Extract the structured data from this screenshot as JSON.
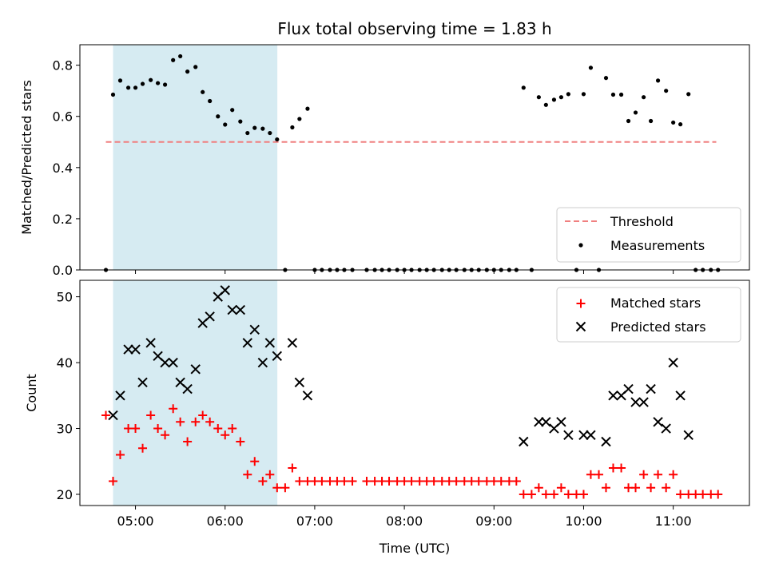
{
  "chart_data": {
    "title": "Flux total observing time = 1.83 h",
    "xlabel": "Time (UTC)",
    "x_tick_labels": [
      "05:00",
      "06:00",
      "07:00",
      "08:00",
      "09:00",
      "10:00",
      "11:00"
    ],
    "x_ticks_hours": [
      5,
      6,
      7,
      8,
      9,
      10,
      11
    ],
    "xlim_hours": [
      4.38,
      11.85
    ],
    "shaded_span_hours": [
      4.75,
      6.583
    ],
    "colors": {
      "shade": "#add8e6",
      "threshold": "#f08080",
      "matched": "#ff0000",
      "predicted": "#000000",
      "measurement": "#000000"
    },
    "panels": [
      {
        "type": "scatter",
        "ylabel": "Matched/Predicted stars",
        "ylim": [
          0,
          0.88
        ],
        "y_ticks": [
          0.0,
          0.2,
          0.4,
          0.6,
          0.8
        ],
        "y_tick_labels": [
          "0.0",
          "0.2",
          "0.4",
          "0.6",
          "0.8"
        ],
        "legend_position": "lower-right",
        "threshold": {
          "name": "Threshold",
          "value": 0.5,
          "x_range_hours": [
            4.67,
            11.48
          ]
        },
        "series": [
          {
            "name": "Measurements",
            "marker": "dot",
            "points": [
              [
                4.67,
                0.0
              ],
              [
                4.75,
                0.685
              ],
              [
                4.83,
                0.74
              ],
              [
                4.92,
                0.712
              ],
              [
                5.0,
                0.712
              ],
              [
                5.08,
                0.727
              ],
              [
                5.17,
                0.742
              ],
              [
                5.25,
                0.73
              ],
              [
                5.33,
                0.724
              ],
              [
                5.42,
                0.82
              ],
              [
                5.5,
                0.835
              ],
              [
                5.58,
                0.775
              ],
              [
                5.67,
                0.793
              ],
              [
                5.75,
                0.695
              ],
              [
                5.83,
                0.66
              ],
              [
                5.92,
                0.6
              ],
              [
                6.0,
                0.568
              ],
              [
                6.08,
                0.625
              ],
              [
                6.17,
                0.58
              ],
              [
                6.25,
                0.535
              ],
              [
                6.33,
                0.555
              ],
              [
                6.42,
                0.552
              ],
              [
                6.5,
                0.535
              ],
              [
                6.58,
                0.51
              ],
              [
                6.67,
                0.0
              ],
              [
                6.75,
                0.557
              ],
              [
                6.83,
                0.59
              ],
              [
                6.92,
                0.63
              ],
              [
                7.0,
                0.0
              ],
              [
                7.08,
                0.0
              ],
              [
                7.17,
                0.0
              ],
              [
                7.25,
                0.0
              ],
              [
                7.33,
                0.0
              ],
              [
                7.42,
                0.0
              ],
              [
                7.58,
                0.0
              ],
              [
                7.67,
                0.0
              ],
              [
                7.75,
                0.0
              ],
              [
                7.83,
                0.0
              ],
              [
                7.92,
                0.0
              ],
              [
                8.0,
                0.0
              ],
              [
                8.08,
                0.0
              ],
              [
                8.17,
                0.0
              ],
              [
                8.25,
                0.0
              ],
              [
                8.33,
                0.0
              ],
              [
                8.42,
                0.0
              ],
              [
                8.5,
                0.0
              ],
              [
                8.58,
                0.0
              ],
              [
                8.67,
                0.0
              ],
              [
                8.75,
                0.0
              ],
              [
                8.83,
                0.0
              ],
              [
                8.92,
                0.0
              ],
              [
                9.0,
                0.0
              ],
              [
                9.08,
                0.0
              ],
              [
                9.17,
                0.0
              ],
              [
                9.25,
                0.0
              ],
              [
                9.33,
                0.712
              ],
              [
                9.42,
                0.0
              ],
              [
                9.5,
                0.675
              ],
              [
                9.58,
                0.645
              ],
              [
                9.67,
                0.665
              ],
              [
                9.75,
                0.675
              ],
              [
                9.83,
                0.687
              ],
              [
                9.92,
                0.0
              ],
              [
                10.0,
                0.687
              ],
              [
                10.08,
                0.79
              ],
              [
                10.17,
                0.0
              ],
              [
                10.25,
                0.75
              ],
              [
                10.33,
                0.685
              ],
              [
                10.42,
                0.685
              ],
              [
                10.5,
                0.582
              ],
              [
                10.58,
                0.615
              ],
              [
                10.67,
                0.675
              ],
              [
                10.75,
                0.582
              ],
              [
                10.83,
                0.74
              ],
              [
                10.92,
                0.7
              ],
              [
                11.0,
                0.576
              ],
              [
                11.08,
                0.569
              ],
              [
                11.17,
                0.687
              ],
              [
                11.25,
                0.0
              ],
              [
                11.33,
                0.0
              ],
              [
                11.42,
                0.0
              ],
              [
                11.5,
                0.0
              ]
            ]
          }
        ],
        "legend": [
          "Threshold",
          "Measurements"
        ]
      },
      {
        "type": "scatter",
        "ylabel": "Count",
        "ylim": [
          18.3,
          52.5
        ],
        "y_ticks": [
          20,
          30,
          40,
          50
        ],
        "y_tick_labels": [
          "20",
          "30",
          "40",
          "50"
        ],
        "legend_position": "upper-right",
        "series": [
          {
            "name": "Matched stars",
            "marker": "plus",
            "points": [
              [
                4.67,
                32
              ],
              [
                4.75,
                22
              ],
              [
                4.83,
                26
              ],
              [
                4.92,
                30
              ],
              [
                5.0,
                30
              ],
              [
                5.08,
                27
              ],
              [
                5.17,
                32
              ],
              [
                5.25,
                30
              ],
              [
                5.33,
                29
              ],
              [
                5.42,
                33
              ],
              [
                5.5,
                31
              ],
              [
                5.58,
                28
              ],
              [
                5.67,
                31
              ],
              [
                5.75,
                32
              ],
              [
                5.83,
                31
              ],
              [
                5.92,
                30
              ],
              [
                6.0,
                29
              ],
              [
                6.08,
                30
              ],
              [
                6.17,
                28
              ],
              [
                6.25,
                23
              ],
              [
                6.33,
                25
              ],
              [
                6.42,
                22
              ],
              [
                6.5,
                23
              ],
              [
                6.58,
                21
              ],
              [
                6.67,
                21
              ],
              [
                6.75,
                24
              ],
              [
                6.83,
                22
              ],
              [
                6.92,
                22
              ],
              [
                7.0,
                22
              ],
              [
                7.08,
                22
              ],
              [
                7.17,
                22
              ],
              [
                7.25,
                22
              ],
              [
                7.33,
                22
              ],
              [
                7.42,
                22
              ],
              [
                7.58,
                22
              ],
              [
                7.67,
                22
              ],
              [
                7.75,
                22
              ],
              [
                7.83,
                22
              ],
              [
                7.92,
                22
              ],
              [
                8.0,
                22
              ],
              [
                8.08,
                22
              ],
              [
                8.17,
                22
              ],
              [
                8.25,
                22
              ],
              [
                8.33,
                22
              ],
              [
                8.42,
                22
              ],
              [
                8.5,
                22
              ],
              [
                8.58,
                22
              ],
              [
                8.67,
                22
              ],
              [
                8.75,
                22
              ],
              [
                8.83,
                22
              ],
              [
                8.92,
                22
              ],
              [
                9.0,
                22
              ],
              [
                9.08,
                22
              ],
              [
                9.17,
                22
              ],
              [
                9.25,
                22
              ],
              [
                9.33,
                20
              ],
              [
                9.42,
                20
              ],
              [
                9.5,
                21
              ],
              [
                9.58,
                20
              ],
              [
                9.67,
                20
              ],
              [
                9.75,
                21
              ],
              [
                9.83,
                20
              ],
              [
                9.92,
                20
              ],
              [
                10.0,
                20
              ],
              [
                10.08,
                23
              ],
              [
                10.17,
                23
              ],
              [
                10.25,
                21
              ],
              [
                10.33,
                24
              ],
              [
                10.42,
                24
              ],
              [
                10.5,
                21
              ],
              [
                10.58,
                21
              ],
              [
                10.67,
                23
              ],
              [
                10.75,
                21
              ],
              [
                10.83,
                23
              ],
              [
                10.92,
                21
              ],
              [
                11.0,
                23
              ],
              [
                11.08,
                20
              ],
              [
                11.17,
                20
              ],
              [
                11.25,
                20
              ],
              [
                11.33,
                20
              ],
              [
                11.42,
                20
              ],
              [
                11.5,
                20
              ]
            ]
          },
          {
            "name": "Predicted stars",
            "marker": "x",
            "points": [
              [
                4.75,
                32
              ],
              [
                4.83,
                35
              ],
              [
                4.92,
                42
              ],
              [
                5.0,
                42
              ],
              [
                5.08,
                37
              ],
              [
                5.17,
                43
              ],
              [
                5.25,
                41
              ],
              [
                5.33,
                40
              ],
              [
                5.42,
                40
              ],
              [
                5.5,
                37
              ],
              [
                5.58,
                36
              ],
              [
                5.67,
                39
              ],
              [
                5.75,
                46
              ],
              [
                5.83,
                47
              ],
              [
                5.92,
                50
              ],
              [
                6.0,
                51
              ],
              [
                6.08,
                48
              ],
              [
                6.17,
                48
              ],
              [
                6.25,
                43
              ],
              [
                6.33,
                45
              ],
              [
                6.42,
                40
              ],
              [
                6.5,
                43
              ],
              [
                6.58,
                41
              ],
              [
                6.75,
                43
              ],
              [
                6.83,
                37
              ],
              [
                6.92,
                35
              ],
              [
                9.33,
                28
              ],
              [
                9.5,
                31
              ],
              [
                9.58,
                31
              ],
              [
                9.67,
                30
              ],
              [
                9.75,
                31
              ],
              [
                9.83,
                29
              ],
              [
                10.0,
                29
              ],
              [
                10.08,
                29
              ],
              [
                10.25,
                28
              ],
              [
                10.33,
                35
              ],
              [
                10.42,
                35
              ],
              [
                10.5,
                36
              ],
              [
                10.58,
                34
              ],
              [
                10.67,
                34
              ],
              [
                10.75,
                36
              ],
              [
                10.83,
                31
              ],
              [
                10.92,
                30
              ],
              [
                11.0,
                40
              ],
              [
                11.08,
                35
              ],
              [
                11.17,
                29
              ]
            ]
          }
        ],
        "legend": [
          "Matched stars",
          "Predicted stars"
        ]
      }
    ]
  }
}
